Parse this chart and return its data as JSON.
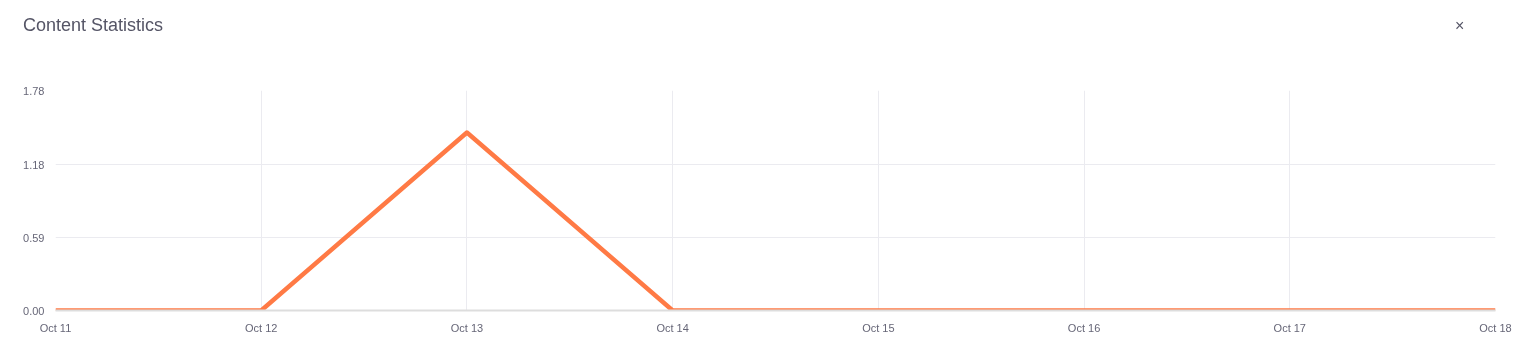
{
  "chart_data": {
    "type": "line",
    "title": "Content Statistics",
    "annotations": [
      "×"
    ],
    "categories": [
      "Oct 11",
      "Oct 12",
      "Oct 13",
      "Oct 14",
      "Oct 15",
      "Oct 16",
      "Oct 17",
      "Oct 18"
    ],
    "series": [
      {
        "color": "#ff7a45",
        "values": [
          0,
          0,
          1.44,
          0,
          0,
          0,
          0,
          0
        ]
      }
    ],
    "ylim": [
      0,
      1.78
    ],
    "yticks": [
      {
        "value": 0,
        "label": "0.00"
      },
      {
        "value": 0.59,
        "label": "0.59"
      },
      {
        "value": 1.18,
        "label": "1.18"
      },
      {
        "value": 1.78,
        "label": "1.78"
      }
    ],
    "grid": true,
    "marker": "none",
    "line_style": "solid"
  }
}
